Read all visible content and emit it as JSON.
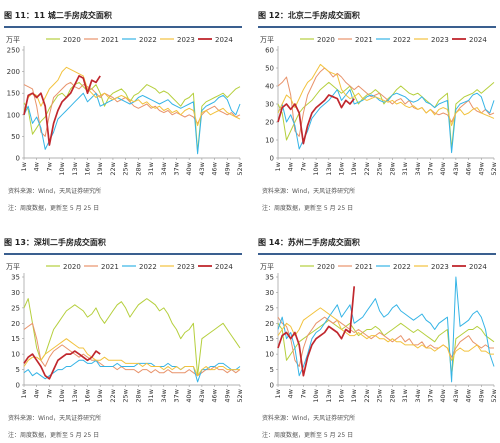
{
  "notes": {
    "source": "资料来源：Wind，天风证券研究所",
    "remark": "注：周度数据，更新至 5 月 25 日"
  },
  "colors": {
    "2020": "#b5cf3d",
    "2021": "#e8936b",
    "2022": "#35b4e6",
    "2023": "#f2c23d",
    "2024": "#c0272d"
  },
  "xticks": [
    "1w",
    "4w",
    "7w",
    "10w",
    "13w",
    "16w",
    "19w",
    "22w",
    "25w",
    "28w",
    "31w",
    "34w",
    "37w",
    "40w",
    "43w",
    "46w",
    "49w",
    "52w"
  ],
  "chart_data": [
    {
      "type": "line",
      "title": "图 11：11 城二手房成交面积",
      "unit": "万平",
      "ylim": [
        0,
        250
      ],
      "yticks": [
        0,
        50,
        100,
        150,
        200,
        250
      ],
      "series": [
        {
          "name": "2020",
          "values": [
            128,
            112,
            55,
            70,
            85,
            95,
            115,
            130,
            145,
            150,
            140,
            160,
            170,
            175,
            165,
            155,
            160,
            170,
            150,
            120,
            140,
            150,
            155,
            160,
            150,
            130,
            145,
            150,
            160,
            170,
            165,
            160,
            150,
            155,
            150,
            140,
            130,
            120,
            135,
            140,
            150,
            15,
            120,
            130,
            135,
            140,
            145,
            150,
            140,
            150,
            160,
            165
          ]
        },
        {
          "name": "2021",
          "values": [
            170,
            165,
            160,
            120,
            60,
            50,
            100,
            140,
            150,
            160,
            170,
            175,
            165,
            160,
            170,
            165,
            160,
            150,
            140,
            150,
            145,
            140,
            130,
            135,
            140,
            130,
            120,
            115,
            120,
            125,
            115,
            120,
            110,
            105,
            110,
            100,
            105,
            100,
            95,
            100,
            95,
            80,
            100,
            110,
            115,
            120,
            110,
            105,
            100,
            105,
            95,
            100
          ]
        },
        {
          "name": "2022",
          "values": [
            100,
            120,
            80,
            95,
            70,
            20,
            40,
            60,
            90,
            100,
            110,
            120,
            130,
            140,
            150,
            130,
            140,
            150,
            120,
            125,
            130,
            135,
            140,
            135,
            130,
            125,
            130,
            140,
            145,
            140,
            135,
            130,
            125,
            130,
            135,
            125,
            120,
            115,
            120,
            125,
            130,
            10,
            110,
            120,
            125,
            130,
            140,
            145,
            135,
            110,
            100,
            125
          ]
        },
        {
          "name": "2023",
          "values": [
            110,
            140,
            150,
            145,
            120,
            140,
            160,
            170,
            180,
            200,
            210,
            205,
            200,
            195,
            190,
            160,
            150,
            140,
            145,
            150,
            140,
            135,
            140,
            145,
            140,
            135,
            130,
            135,
            125,
            130,
            120,
            115,
            120,
            110,
            115,
            105,
            110,
            100,
            110,
            115,
            110,
            75,
            105,
            110,
            100,
            105,
            110,
            115,
            105,
            100,
            95,
            90
          ]
        },
        {
          "name": "2024",
          "values": [
            100,
            145,
            150,
            140,
            150,
            120,
            30,
            80,
            110,
            130,
            140,
            150,
            170,
            190,
            185,
            150,
            180,
            175,
            190
          ]
        }
      ]
    },
    {
      "type": "line",
      "title": "图 12：北京二手房成交面积",
      "unit": "万平",
      "ylim": [
        0,
        60
      ],
      "yticks": [
        0,
        10,
        20,
        30,
        40,
        50,
        60
      ],
      "series": [
        {
          "name": "2020",
          "values": [
            30,
            25,
            10,
            15,
            20,
            25,
            28,
            30,
            32,
            35,
            38,
            40,
            42,
            40,
            38,
            36,
            38,
            40,
            35,
            30,
            33,
            35,
            36,
            38,
            36,
            30,
            33,
            35,
            38,
            40,
            38,
            36,
            35,
            36,
            34,
            32,
            30,
            28,
            32,
            34,
            36,
            5,
            30,
            32,
            34,
            35,
            36,
            38,
            36,
            38,
            40,
            42
          ]
        },
        {
          "name": "2021",
          "values": [
            40,
            42,
            45,
            35,
            15,
            12,
            25,
            35,
            40,
            45,
            48,
            50,
            48,
            45,
            47,
            45,
            42,
            40,
            38,
            40,
            38,
            36,
            34,
            35,
            36,
            34,
            32,
            30,
            32,
            33,
            30,
            32,
            28,
            27,
            28,
            25,
            27,
            25,
            24,
            25,
            24,
            20,
            25,
            28,
            30,
            32,
            28,
            26,
            25,
            27,
            24,
            25
          ]
        },
        {
          "name": "2022",
          "values": [
            25,
            30,
            20,
            24,
            18,
            5,
            10,
            15,
            22,
            25,
            28,
            30,
            32,
            35,
            38,
            32,
            35,
            38,
            30,
            31,
            32,
            34,
            35,
            34,
            32,
            31,
            32,
            35,
            36,
            35,
            34,
            32,
            31,
            32,
            34,
            31,
            30,
            28,
            30,
            31,
            32,
            3,
            27,
            30,
            31,
            32,
            35,
            36,
            34,
            27,
            25,
            32
          ]
        },
        {
          "name": "2023",
          "values": [
            25,
            30,
            35,
            33,
            28,
            33,
            38,
            42,
            44,
            48,
            52,
            50,
            48,
            47,
            46,
            38,
            35,
            33,
            34,
            36,
            33,
            32,
            33,
            34,
            33,
            32,
            31,
            32,
            30,
            31,
            29,
            28,
            29,
            27,
            28,
            25,
            27,
            24,
            27,
            28,
            27,
            18,
            25,
            27,
            24,
            25,
            27,
            28,
            25,
            24,
            23,
            22
          ]
        },
        {
          "name": "2024",
          "values": [
            20,
            28,
            30,
            27,
            30,
            25,
            8,
            18,
            25,
            28,
            30,
            32,
            35,
            34,
            33,
            28,
            32,
            30,
            33
          ]
        }
      ]
    },
    {
      "type": "line",
      "title": "图 13：深圳二手房成交面积",
      "unit": "万平",
      "ylim": [
        0,
        35
      ],
      "yticks": [
        0,
        5,
        10,
        15,
        20,
        25,
        30,
        35
      ],
      "series": [
        {
          "name": "2020",
          "values": [
            25,
            28,
            20,
            12,
            8,
            10,
            14,
            18,
            20,
            22,
            24,
            25,
            26,
            25,
            24,
            22,
            23,
            25,
            22,
            20,
            22,
            24,
            26,
            27,
            25,
            22,
            24,
            26,
            27,
            28,
            27,
            26,
            24,
            25,
            23,
            20,
            18,
            15,
            17,
            18,
            20,
            3,
            15,
            16,
            17,
            18,
            19,
            20,
            18,
            16,
            14,
            12
          ]
        },
        {
          "name": "2021",
          "values": [
            18,
            19,
            20,
            15,
            8,
            6,
            9,
            11,
            12,
            13,
            12,
            11,
            10,
            9,
            10,
            9,
            8,
            8,
            7,
            6,
            6,
            6,
            5,
            6,
            5,
            5,
            5,
            4,
            5,
            5,
            4,
            5,
            4,
            4,
            5,
            4,
            4,
            4,
            4,
            5,
            4,
            3,
            4,
            5,
            5,
            6,
            5,
            5,
            4,
            5,
            4,
            5
          ]
        },
        {
          "name": "2022",
          "values": [
            4,
            5,
            3,
            4,
            3,
            2,
            3,
            4,
            5,
            5,
            6,
            6,
            7,
            8,
            8,
            7,
            7,
            8,
            6,
            6,
            6,
            6,
            7,
            6,
            6,
            6,
            6,
            7,
            7,
            7,
            7,
            6,
            6,
            6,
            7,
            6,
            6,
            5,
            6,
            6,
            6,
            1,
            5,
            5,
            6,
            6,
            7,
            7,
            6,
            5,
            5,
            6
          ]
        },
        {
          "name": "2023",
          "values": [
            6,
            8,
            9,
            9,
            8,
            10,
            11,
            12,
            13,
            14,
            15,
            14,
            13,
            12,
            12,
            10,
            9,
            8,
            8,
            9,
            8,
            8,
            8,
            8,
            7,
            7,
            7,
            7,
            6,
            7,
            6,
            6,
            6,
            5,
            6,
            5,
            6,
            5,
            6,
            6,
            6,
            3,
            5,
            6,
            5,
            5,
            6,
            6,
            5,
            5,
            5,
            5
          ]
        },
        {
          "name": "2024",
          "values": [
            7,
            9,
            10,
            8,
            6,
            3,
            2,
            5,
            8,
            9,
            10,
            10,
            11,
            10,
            9,
            8,
            9,
            11,
            10
          ]
        }
      ]
    },
    {
      "type": "line",
      "title": "图 14：苏州二手房成交面积",
      "unit": "万平",
      "ylim": [
        0,
        35
      ],
      "yticks": [
        0,
        5,
        10,
        15,
        20,
        25,
        30,
        35
      ],
      "series": [
        {
          "name": "2020",
          "values": [
            20,
            18,
            8,
            10,
            12,
            14,
            15,
            16,
            17,
            18,
            19,
            20,
            21,
            20,
            19,
            18,
            19,
            20,
            18,
            16,
            17,
            18,
            18,
            19,
            18,
            16,
            17,
            18,
            19,
            20,
            19,
            18,
            17,
            18,
            17,
            16,
            15,
            14,
            16,
            17,
            18,
            3,
            15,
            16,
            17,
            18,
            18,
            19,
            18,
            16,
            15,
            14
          ]
        },
        {
          "name": "2021",
          "values": [
            22,
            20,
            19,
            15,
            8,
            6,
            12,
            16,
            18,
            20,
            21,
            22,
            21,
            20,
            21,
            20,
            19,
            18,
            17,
            18,
            17,
            16,
            15,
            16,
            17,
            16,
            15,
            14,
            15,
            16,
            14,
            15,
            13,
            13,
            14,
            12,
            13,
            12,
            12,
            13,
            12,
            9,
            12,
            14,
            15,
            16,
            14,
            13,
            12,
            13,
            12,
            12
          ]
        },
        {
          "name": "2022",
          "values": [
            18,
            22,
            15,
            17,
            12,
            3,
            6,
            10,
            15,
            17,
            18,
            20,
            22,
            24,
            26,
            22,
            24,
            26,
            20,
            21,
            22,
            24,
            26,
            28,
            24,
            22,
            23,
            25,
            26,
            24,
            23,
            22,
            21,
            22,
            23,
            21,
            20,
            18,
            20,
            21,
            22,
            1,
            35,
            19,
            20,
            21,
            23,
            24,
            22,
            18,
            10,
            6
          ]
        },
        {
          "name": "2023",
          "values": [
            16,
            18,
            20,
            19,
            16,
            18,
            21,
            22,
            23,
            24,
            25,
            24,
            23,
            22,
            21,
            18,
            17,
            16,
            16,
            17,
            16,
            15,
            16,
            16,
            15,
            15,
            14,
            15,
            14,
            14,
            13,
            13,
            13,
            12,
            13,
            12,
            12,
            11,
            12,
            13,
            12,
            8,
            11,
            12,
            11,
            11,
            12,
            13,
            11,
            11,
            10,
            10
          ]
        },
        {
          "name": "2024",
          "values": [
            12,
            16,
            17,
            15,
            17,
            13,
            3,
            9,
            13,
            15,
            16,
            17,
            19,
            18,
            17,
            15,
            18,
            17,
            32
          ]
        }
      ]
    }
  ]
}
